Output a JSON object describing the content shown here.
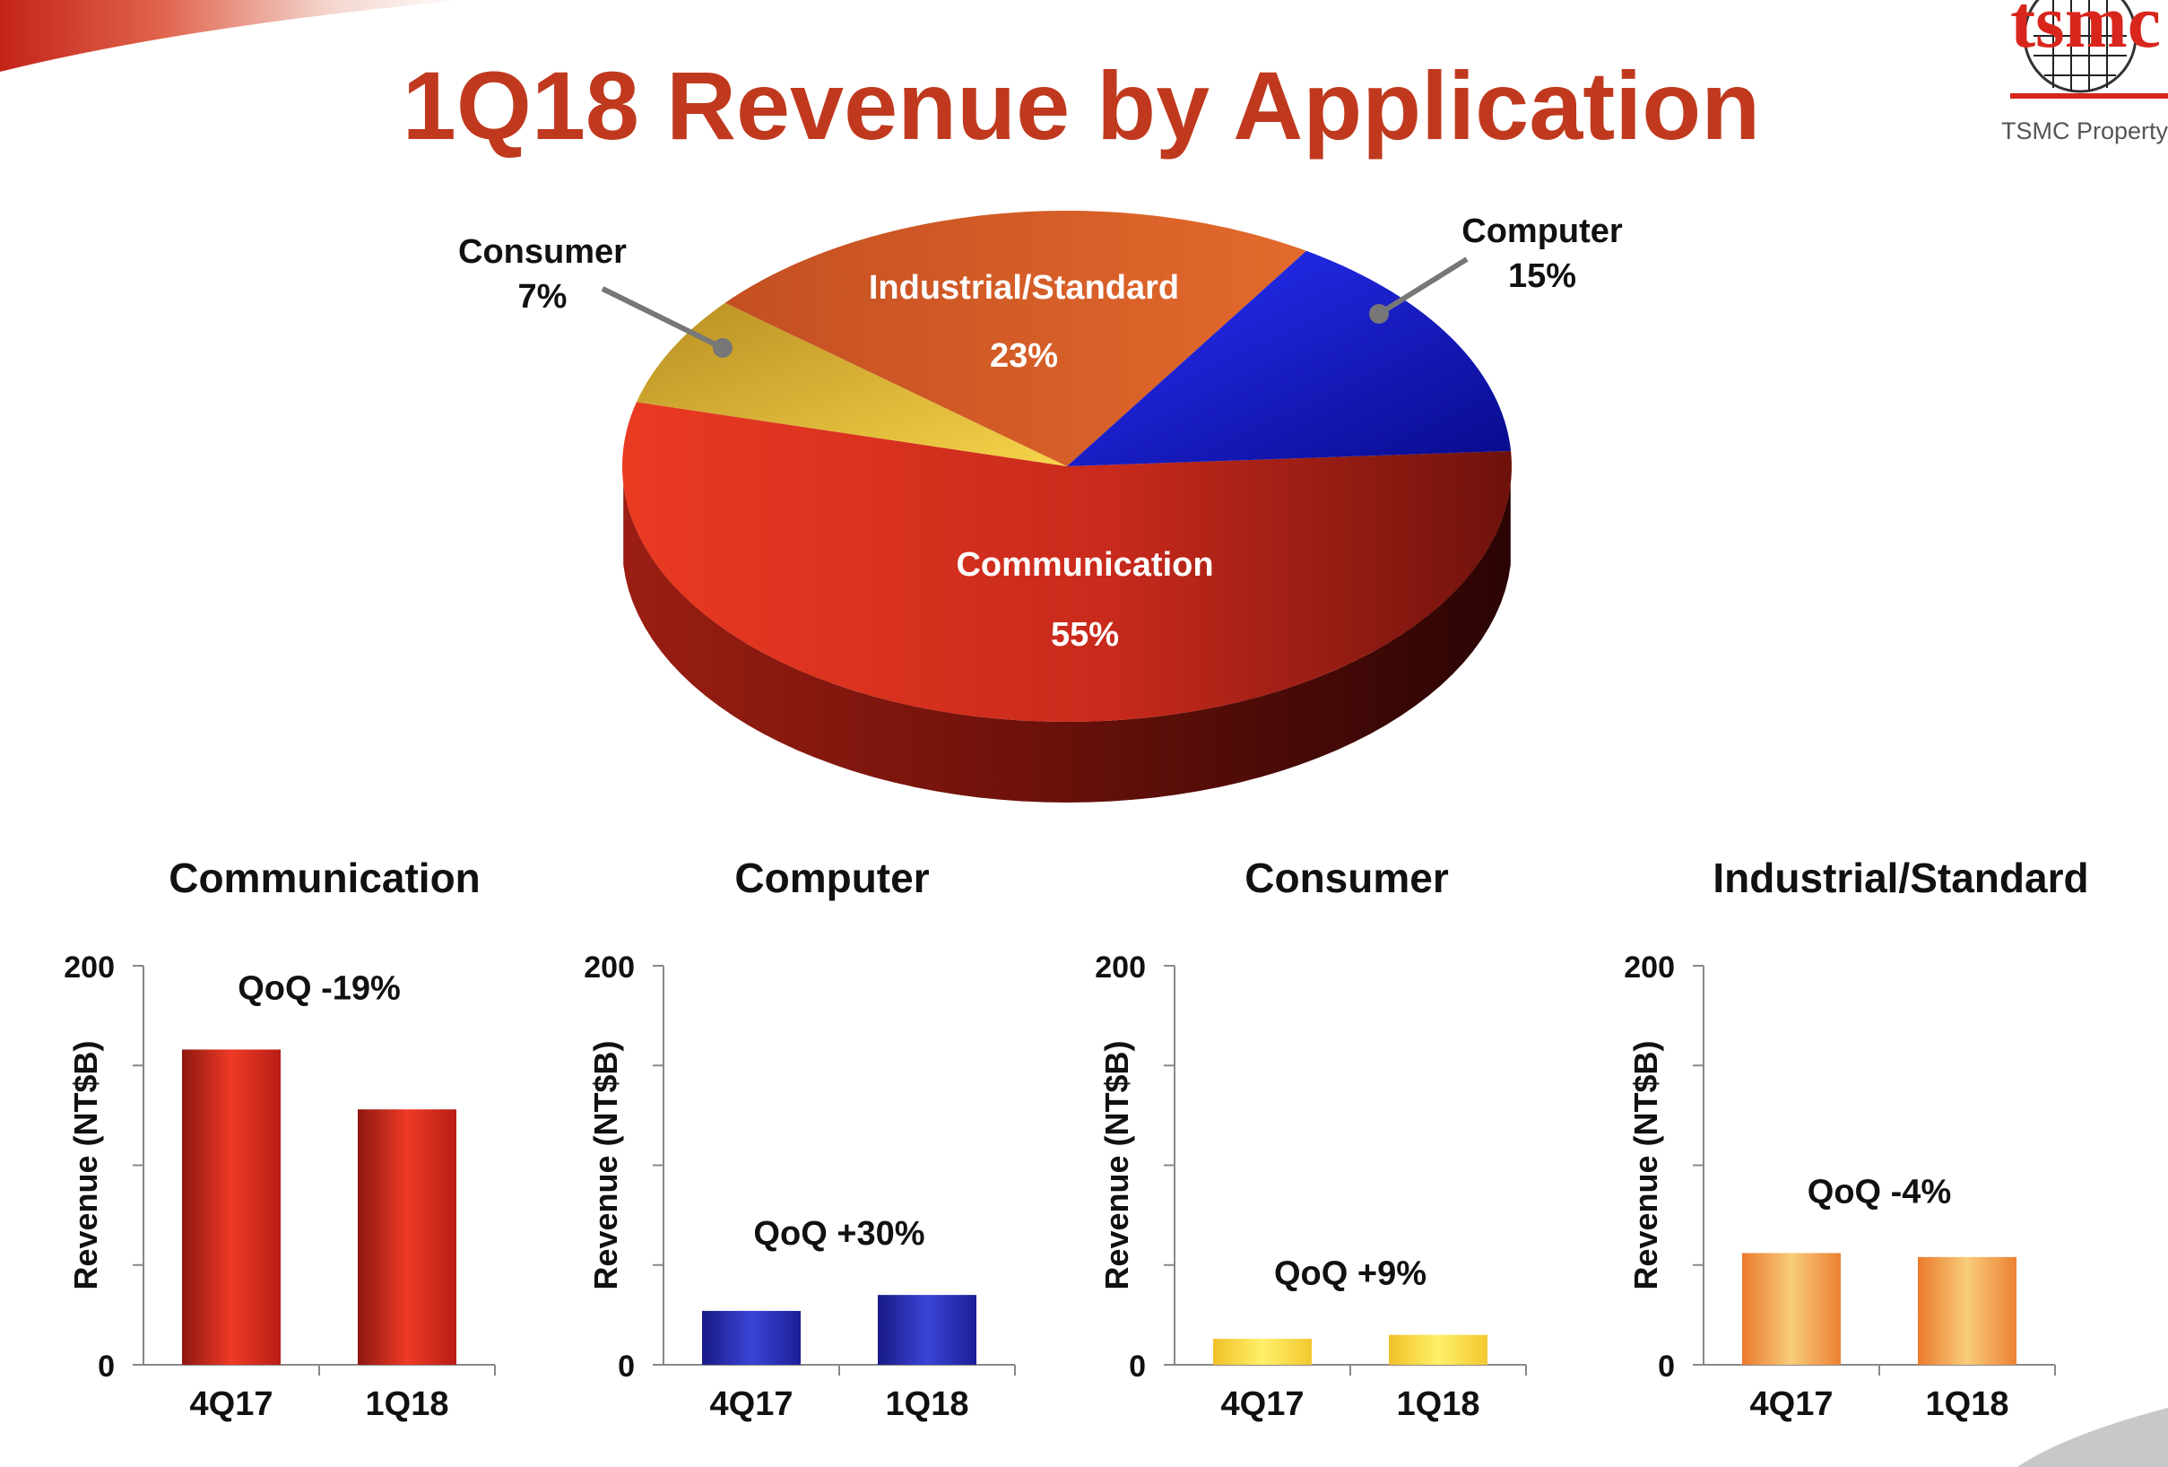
{
  "slide": {
    "title": "1Q18 Revenue by Application",
    "logo_text": "tsmc",
    "property_label": "TSMC Property"
  },
  "colors": {
    "title": "#c0391e",
    "communication": "#d42a1e",
    "computer": "#1a1fb0",
    "consumer": "#f3d23c",
    "industrial": "#ef8a3c",
    "pie_industrial": "#d9602a",
    "pie_consumer": "#e2b73a"
  },
  "chart_data": [
    {
      "type": "pie",
      "slices": [
        {
          "key": "communication",
          "label": "Communication",
          "value": 55,
          "value_label": "55%"
        },
        {
          "key": "computer",
          "label": "Computer",
          "value": 15,
          "value_label": "15%"
        },
        {
          "key": "industrial",
          "label": "Industrial/Standard",
          "value": 23,
          "value_label": "23%"
        },
        {
          "key": "consumer",
          "label": "Consumer",
          "value": 7,
          "value_label": "7%"
        }
      ]
    },
    {
      "type": "bar",
      "key": "communication",
      "title": "Communication",
      "ylabel": "Revenue (NT$B)",
      "ylim": [
        0,
        200
      ],
      "yticks": [
        0,
        50,
        100,
        150,
        200
      ],
      "ytick_labels": [
        "0",
        "",
        "",
        "",
        "200"
      ],
      "categories": [
        "4Q17",
        "1Q18"
      ],
      "values": [
        158,
        128
      ],
      "annotation": "QoQ  -19%"
    },
    {
      "type": "bar",
      "key": "computer",
      "title": "Computer",
      "ylabel": "Revenue (NT$B)",
      "ylim": [
        0,
        200
      ],
      "yticks": [
        0,
        50,
        100,
        150,
        200
      ],
      "ytick_labels": [
        "0",
        "",
        "",
        "",
        "200"
      ],
      "categories": [
        "4Q17",
        "1Q18"
      ],
      "values": [
        27,
        35
      ],
      "annotation": "QoQ +30%"
    },
    {
      "type": "bar",
      "key": "consumer",
      "title": "Consumer",
      "ylabel": "Revenue (NT$B)",
      "ylim": [
        0,
        200
      ],
      "yticks": [
        0,
        50,
        100,
        150,
        200
      ],
      "ytick_labels": [
        "0",
        "",
        "",
        "",
        "200"
      ],
      "categories": [
        "4Q17",
        "1Q18"
      ],
      "values": [
        13,
        15
      ],
      "annotation": "QoQ +9%"
    },
    {
      "type": "bar",
      "key": "industrial",
      "title": "Industrial/Standard",
      "ylabel": "Revenue (NT$B)",
      "ylim": [
        0,
        200
      ],
      "yticks": [
        0,
        50,
        100,
        150,
        200
      ],
      "ytick_labels": [
        "0",
        "",
        "",
        "",
        "200"
      ],
      "categories": [
        "4Q17",
        "1Q18"
      ],
      "values": [
        56,
        54
      ],
      "annotation": "QoQ -4%"
    }
  ]
}
